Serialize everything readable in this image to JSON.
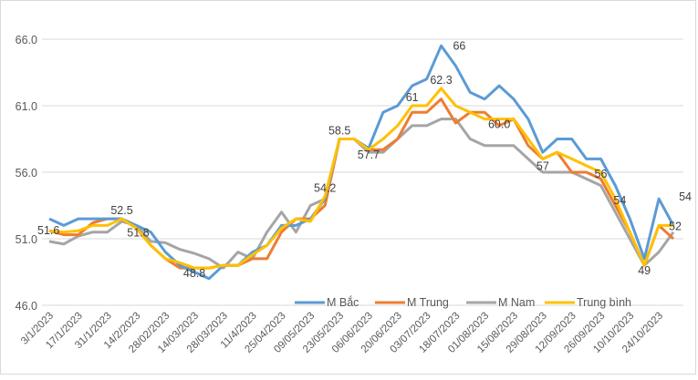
{
  "chart_data": {
    "type": "line",
    "title": "",
    "xlabel": "",
    "ylabel": "",
    "ylim": [
      46,
      66
    ],
    "yticks": [
      "46.0",
      "51.0",
      "56.0",
      "61.0",
      "66.0"
    ],
    "grid": "horizontal",
    "legend_position": "bottom-right",
    "x_tick_labels": [
      "3/1/2023",
      "17/1/2023",
      "31/1/2023",
      "14/2/2023",
      "28/02/2023",
      "14/03/2023",
      "28/03/2023",
      "11/4/2023",
      "25/04/2023",
      "09/05/2023",
      "23/05/2023",
      "06/06/2023",
      "20/06/2023",
      "03/07/2023",
      "18/07/2023",
      "01/08/2023",
      "15/08/2023",
      "29/08/2023",
      "12/09/2023",
      "26/09/2023",
      "10/10/2023",
      "24/10/2023"
    ],
    "series": [
      {
        "name": "M Bắc",
        "color": "#5b9bd5",
        "values": [
          52.5,
          52.0,
          52.5,
          52.5,
          52.5,
          52.5,
          52.0,
          51.5,
          50.0,
          49.0,
          48.5,
          48.0,
          49.0,
          49.0,
          50.0,
          50.5,
          52.0,
          52.0,
          52.5,
          54.0,
          58.5,
          58.5,
          57.8,
          60.5,
          61.0,
          62.5,
          63.0,
          65.5,
          64.0,
          62.0,
          61.5,
          62.5,
          61.5,
          60.0,
          57.5,
          58.5,
          58.5,
          57.0,
          57.0,
          55.0,
          52.5,
          49.5,
          54.0,
          52.0
        ]
      },
      {
        "name": "M Trung",
        "color": "#ed7d31",
        "values": [
          51.6,
          51.3,
          51.3,
          52.2,
          52.5,
          52.5,
          51.8,
          50.5,
          49.5,
          48.8,
          48.8,
          48.8,
          49.0,
          49.0,
          49.5,
          49.5,
          51.5,
          52.5,
          52.5,
          53.5,
          58.5,
          58.5,
          57.7,
          57.7,
          58.5,
          60.5,
          60.5,
          61.5,
          59.7,
          60.5,
          60.5,
          59.5,
          60.0,
          58.0,
          57.0,
          57.5,
          56.0,
          56.0,
          55.5,
          53.5,
          51.5,
          49.0,
          52.0,
          51.0
        ]
      },
      {
        "name": "M Nam",
        "color": "#a5a5a5",
        "values": [
          50.8,
          50.6,
          51.2,
          51.5,
          51.5,
          52.3,
          52.0,
          50.8,
          50.7,
          50.2,
          49.9,
          49.5,
          48.8,
          50.0,
          49.5,
          51.5,
          53.0,
          51.5,
          53.5,
          54.0,
          58.5,
          58.5,
          57.5,
          57.5,
          58.5,
          59.5,
          59.5,
          60.0,
          60.0,
          58.5,
          58.0,
          58.0,
          58.0,
          57.0,
          56.0,
          56.0,
          56.0,
          55.5,
          55.0,
          53.0,
          51.0,
          49.0,
          50.0,
          51.5
        ]
      },
      {
        "name": "Trung bình",
        "color": "#ffc000",
        "values": [
          51.6,
          51.5,
          51.6,
          52.0,
          52.0,
          52.5,
          51.8,
          50.5,
          49.5,
          49.2,
          48.8,
          48.8,
          49.0,
          49.0,
          49.8,
          50.5,
          51.8,
          52.5,
          52.3,
          54.2,
          58.5,
          58.5,
          57.7,
          58.5,
          59.5,
          61.0,
          61.0,
          62.3,
          61.0,
          60.5,
          60.0,
          60.0,
          60.0,
          58.5,
          57.0,
          57.5,
          57.0,
          56.5,
          56.0,
          54.0,
          51.5,
          49.0,
          52.0,
          52.0
        ]
      }
    ],
    "data_labels": [
      {
        "series": 3,
        "index": 0,
        "text": "51.6"
      },
      {
        "series": 3,
        "index": 5,
        "text": "52.5"
      },
      {
        "series": 3,
        "index": 6,
        "text": "51.8"
      },
      {
        "series": 3,
        "index": 10,
        "text": "48.8"
      },
      {
        "series": 3,
        "index": 19,
        "text": "54.2"
      },
      {
        "series": 3,
        "index": 20,
        "text": "58.5"
      },
      {
        "series": 3,
        "index": 22,
        "text": "57.7"
      },
      {
        "series": 3,
        "index": 25,
        "text": "61"
      },
      {
        "series": 3,
        "index": 27,
        "text": "62.3"
      },
      {
        "series": 0,
        "index": 27,
        "text": "66"
      },
      {
        "series": 3,
        "index": 31,
        "text": "60.0"
      },
      {
        "series": 3,
        "index": 34,
        "text": "57"
      },
      {
        "series": 3,
        "index": 38,
        "text": "56"
      },
      {
        "series": 3,
        "index": 39,
        "text": "54"
      },
      {
        "series": 3,
        "index": 41,
        "text": "49"
      },
      {
        "series": 0,
        "index": 42,
        "text": "54"
      },
      {
        "series": 3,
        "index": 43,
        "text": "52"
      }
    ]
  }
}
